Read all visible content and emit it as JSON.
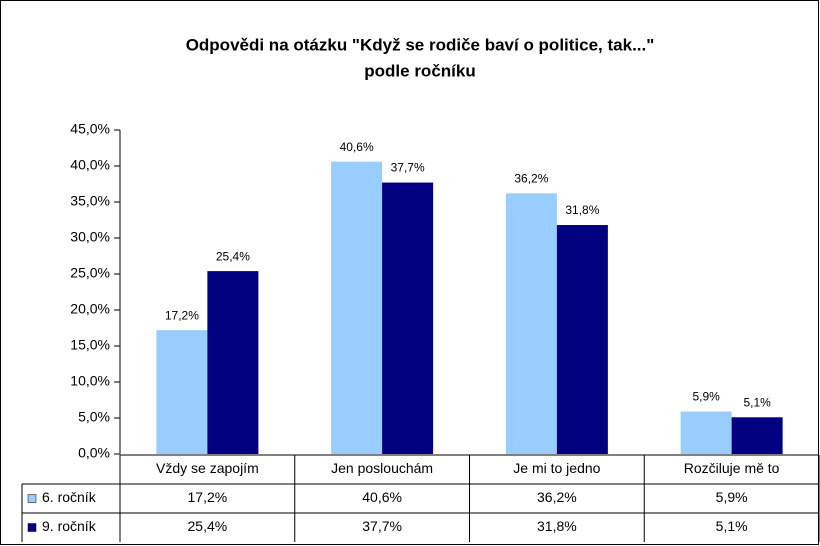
{
  "chart_data": {
    "type": "bar",
    "title": [
      "Odpovědi na otázku \"Když se rodiče baví o politice, tak...\"",
      "podle ročníku"
    ],
    "categories": [
      "Vždy se zapojím",
      "Jen poslouchám",
      "Je mi to jedno",
      "Rozčiluje mě to"
    ],
    "series": [
      {
        "name": "6. ročník",
        "color": "#99ccff",
        "values": [
          17.2,
          40.6,
          36.2,
          5.9
        ],
        "value_labels": [
          "17,2%",
          "40,6%",
          "36,2%",
          "5,9%"
        ]
      },
      {
        "name": "9. ročník",
        "color": "#000080",
        "values": [
          25.4,
          37.7,
          31.8,
          5.1
        ],
        "value_labels": [
          "25,4%",
          "37,7%",
          "31,8%",
          "5,1%"
        ]
      }
    ],
    "ylim": [
      0,
      45
    ],
    "yticks": [
      {
        "value": 0,
        "label": "0,0%"
      },
      {
        "value": 5,
        "label": "5,0%"
      },
      {
        "value": 10,
        "label": "10,0%"
      },
      {
        "value": 15,
        "label": "15,0%"
      },
      {
        "value": 20,
        "label": "20,0%"
      },
      {
        "value": 25,
        "label": "25,0%"
      },
      {
        "value": 30,
        "label": "30,0%"
      },
      {
        "value": 35,
        "label": "35,0%"
      },
      {
        "value": 40,
        "label": "40,0%"
      },
      {
        "value": 45,
        "label": "45,0%"
      }
    ],
    "grid": false,
    "data_table": true
  }
}
